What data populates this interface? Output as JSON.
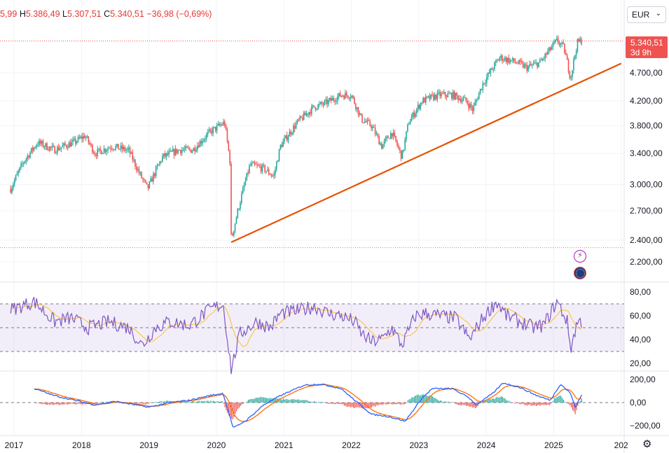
{
  "header": {
    "ohlc_open": "5,99",
    "high_label": "H",
    "high": "5.386,49",
    "low_label": "L",
    "low": "5.307,51",
    "close_label": "C",
    "close": "5.340,51",
    "change": "−36,98 (−0,69%)"
  },
  "currency": {
    "value": "EUR",
    "chevron": "chevron-down-icon"
  },
  "price_tag": {
    "price": "5.340,51",
    "countdown": "3d 9h"
  },
  "colors": {
    "up": "#26a69a",
    "down": "#ef5350",
    "rsi": "#7e57c2",
    "rsi_ma": "#f9c74f",
    "macd": "#2962ff",
    "signal": "#ff6d00",
    "trendline": "#e65100"
  },
  "icons": {
    "lightning": "lightning-icon",
    "flag": "eu-flag-icon",
    "settings": "gear-icon"
  },
  "chart_data": [
    {
      "type": "candlestick",
      "title": "",
      "x_labels": [
        "2017",
        "2018",
        "2019",
        "2020",
        "2021",
        "2022",
        "2023",
        "2024",
        "2025",
        "202"
      ],
      "y_ticks": [
        "4.700,00",
        "4.200,00",
        "3.800,00",
        "3.400,00",
        "3.000,00",
        "2.700,00",
        "2.400,00",
        "2.200,00"
      ],
      "y_tick_values": [
        4700,
        4200,
        3800,
        3400,
        3000,
        2700,
        2400,
        2200
      ],
      "scale": "log",
      "close_approx": [
        [
          2016.95,
          2950
        ],
        [
          2017.15,
          3300
        ],
        [
          2017.35,
          3550
        ],
        [
          2017.6,
          3450
        ],
        [
          2017.9,
          3560
        ],
        [
          2018.05,
          3650
        ],
        [
          2018.2,
          3400
        ],
        [
          2018.45,
          3500
        ],
        [
          2018.7,
          3440
        ],
        [
          2018.85,
          3150
        ],
        [
          2018.98,
          2950
        ],
        [
          2019.2,
          3350
        ],
        [
          2019.45,
          3450
        ],
        [
          2019.65,
          3450
        ],
        [
          2019.9,
          3700
        ],
        [
          2020.12,
          3850
        ],
        [
          2020.2,
          3300
        ],
        [
          2020.22,
          2400
        ],
        [
          2020.35,
          2800
        ],
        [
          2020.5,
          3250
        ],
        [
          2020.7,
          3200
        ],
        [
          2020.85,
          3100
        ],
        [
          2020.95,
          3500
        ],
        [
          2021.2,
          3850
        ],
        [
          2021.45,
          4100
        ],
        [
          2021.6,
          4150
        ],
        [
          2021.85,
          4300
        ],
        [
          2022.0,
          4300
        ],
        [
          2022.15,
          3900
        ],
        [
          2022.3,
          3800
        ],
        [
          2022.45,
          3500
        ],
        [
          2022.6,
          3700
        ],
        [
          2022.75,
          3350
        ],
        [
          2022.85,
          3850
        ],
        [
          2023.05,
          4200
        ],
        [
          2023.3,
          4300
        ],
        [
          2023.5,
          4300
        ],
        [
          2023.7,
          4200
        ],
        [
          2023.8,
          4050
        ],
        [
          2023.95,
          4500
        ],
        [
          2024.2,
          5000
        ],
        [
          2024.45,
          4900
        ],
        [
          2024.6,
          4800
        ],
        [
          2024.8,
          4900
        ],
        [
          2025.05,
          5350
        ],
        [
          2025.15,
          5200
        ],
        [
          2025.25,
          4600
        ],
        [
          2025.35,
          5300
        ],
        [
          2025.4,
          5340
        ]
      ],
      "trendline": {
        "from": [
          2020.22,
          2380
        ],
        "to": [
          2026.0,
          4880
        ]
      },
      "last_price": 5340.51,
      "prev_line": 2330
    },
    {
      "type": "line",
      "title": "",
      "indicator": "RSI",
      "y_ticks": [
        "80,00",
        "60,00",
        "40,00",
        "20,00"
      ],
      "y_tick_values": [
        80,
        60,
        40,
        20
      ],
      "band": [
        30,
        70
      ],
      "mid": 50,
      "rsi_approx": [
        [
          2016.95,
          65
        ],
        [
          2017.3,
          72
        ],
        [
          2017.6,
          55
        ],
        [
          2017.85,
          58
        ],
        [
          2018.1,
          50
        ],
        [
          2018.4,
          55
        ],
        [
          2018.7,
          50
        ],
        [
          2018.9,
          35
        ],
        [
          2019.1,
          50
        ],
        [
          2019.3,
          55
        ],
        [
          2019.6,
          52
        ],
        [
          2019.9,
          65
        ],
        [
          2020.1,
          70
        ],
        [
          2020.22,
          15
        ],
        [
          2020.35,
          45
        ],
        [
          2020.6,
          55
        ],
        [
          2020.8,
          50
        ],
        [
          2020.95,
          62
        ],
        [
          2021.2,
          64
        ],
        [
          2021.45,
          68
        ],
        [
          2021.65,
          62
        ],
        [
          2021.85,
          60
        ],
        [
          2022.05,
          55
        ],
        [
          2022.15,
          45
        ],
        [
          2022.3,
          38
        ],
        [
          2022.45,
          40
        ],
        [
          2022.6,
          50
        ],
        [
          2022.75,
          35
        ],
        [
          2022.95,
          60
        ],
        [
          2023.1,
          62
        ],
        [
          2023.3,
          60
        ],
        [
          2023.55,
          58
        ],
        [
          2023.75,
          40
        ],
        [
          2023.95,
          58
        ],
        [
          2024.15,
          72
        ],
        [
          2024.3,
          60
        ],
        [
          2024.5,
          55
        ],
        [
          2024.7,
          50
        ],
        [
          2024.85,
          52
        ],
        [
          2025.05,
          72
        ],
        [
          2025.2,
          55
        ],
        [
          2025.25,
          32
        ],
        [
          2025.35,
          55
        ],
        [
          2025.42,
          55
        ]
      ]
    },
    {
      "type": "line",
      "title": "",
      "indicator": "MACD",
      "y_ticks": [
        "200,00",
        "0,00",
        "−200,00"
      ],
      "y_tick_values": [
        200,
        0,
        -200
      ],
      "macd_approx": [
        [
          2017.3,
          120
        ],
        [
          2017.6,
          60
        ],
        [
          2017.9,
          20
        ],
        [
          2018.2,
          -20
        ],
        [
          2018.5,
          10
        ],
        [
          2018.8,
          -20
        ],
        [
          2019.0,
          -40
        ],
        [
          2019.3,
          0
        ],
        [
          2019.6,
          20
        ],
        [
          2019.9,
          60
        ],
        [
          2020.1,
          80
        ],
        [
          2020.25,
          -220
        ],
        [
          2020.45,
          -150
        ],
        [
          2020.7,
          -20
        ],
        [
          2020.95,
          60
        ],
        [
          2021.3,
          150
        ],
        [
          2021.55,
          160
        ],
        [
          2021.85,
          120
        ],
        [
          2022.05,
          20
        ],
        [
          2022.3,
          -100
        ],
        [
          2022.55,
          -120
        ],
        [
          2022.8,
          -160
        ],
        [
          2023.05,
          40
        ],
        [
          2023.2,
          120
        ],
        [
          2023.5,
          120
        ],
        [
          2023.75,
          40
        ],
        [
          2023.85,
          -20
        ],
        [
          2024.1,
          80
        ],
        [
          2024.25,
          170
        ],
        [
          2024.5,
          130
        ],
        [
          2024.75,
          60
        ],
        [
          2024.95,
          20
        ],
        [
          2025.1,
          160
        ],
        [
          2025.25,
          80
        ],
        [
          2025.32,
          -40
        ],
        [
          2025.42,
          70
        ]
      ]
    }
  ]
}
